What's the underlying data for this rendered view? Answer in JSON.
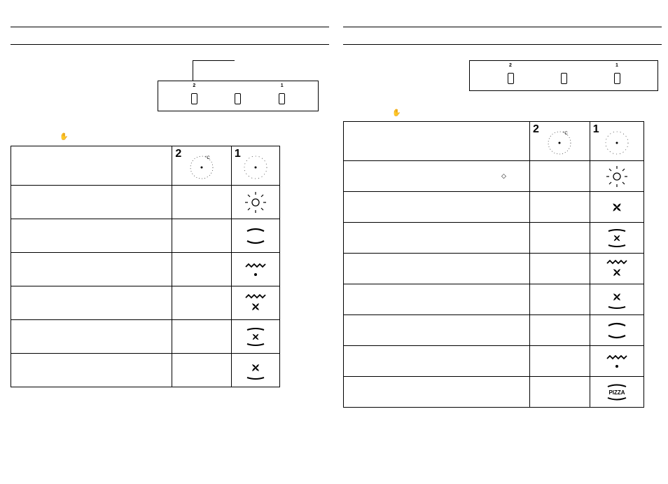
{
  "colors": {
    "stroke": "#000000",
    "bg": "#ffffff"
  },
  "left": {
    "panel": {
      "knobs": [
        {
          "label": "2"
        },
        {
          "label": ""
        },
        {
          "label": "1"
        }
      ]
    },
    "table": {
      "header_col2_num": "2",
      "header_col3_num": "1",
      "rows": [
        {
          "desc": "",
          "temp": "",
          "icon": "light"
        },
        {
          "desc": "",
          "temp": "",
          "icon": "conv"
        },
        {
          "desc": "",
          "temp": "",
          "icon": "grill-dot"
        },
        {
          "desc": "",
          "temp": "",
          "icon": "grill-fan"
        },
        {
          "desc": "",
          "temp": "",
          "icon": "fan-box"
        },
        {
          "desc": "",
          "temp": "",
          "icon": "fan-bottom"
        }
      ]
    }
  },
  "right": {
    "panel": {
      "knobs": [
        {
          "label": "2"
        },
        {
          "label": ""
        },
        {
          "label": "1"
        }
      ]
    },
    "table": {
      "header_col2_num": "2",
      "header_col3_num": "1",
      "rows": [
        {
          "desc": "",
          "temp": "",
          "icon": "light"
        },
        {
          "desc": "",
          "temp": "",
          "icon": "fan"
        },
        {
          "desc": "",
          "temp": "",
          "icon": "fan-box"
        },
        {
          "desc": "",
          "temp": "",
          "icon": "grill-fan"
        },
        {
          "desc": "",
          "temp": "",
          "icon": "fan-bottom"
        },
        {
          "desc": "",
          "temp": "",
          "icon": "conv"
        },
        {
          "desc": "",
          "temp": "",
          "icon": "grill-dot"
        },
        {
          "desc": "",
          "temp": "",
          "icon": "pizza"
        }
      ]
    }
  },
  "icons": {
    "light": "light-bulb",
    "conv": "top-bottom-heat",
    "grill-dot": "grill",
    "grill-fan": "grill-with-fan",
    "fan-box": "fan-in-box",
    "fan-bottom": "fan-bottom-heat",
    "fan": "fan-only",
    "pizza": "pizza-mode"
  }
}
